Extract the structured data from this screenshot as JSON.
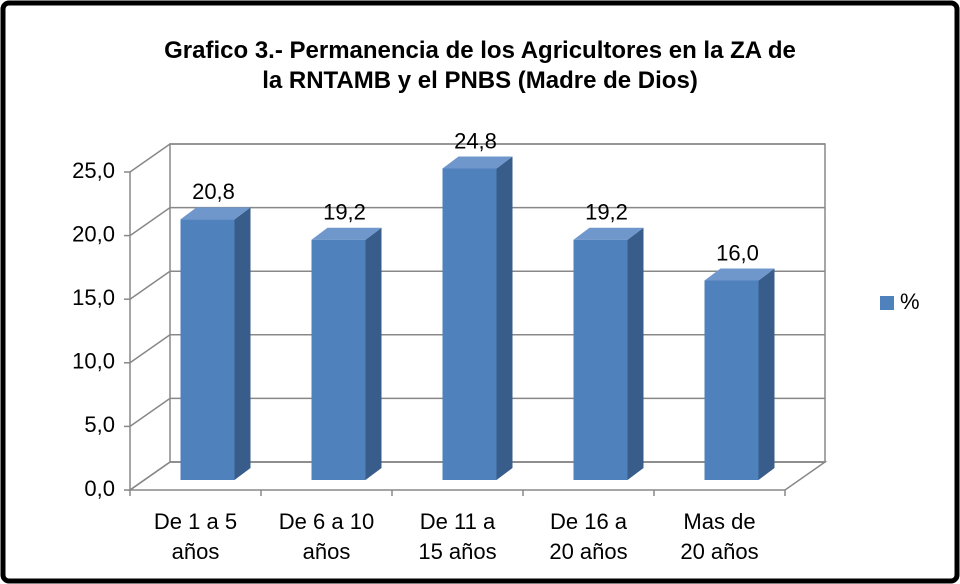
{
  "chart_data": {
    "type": "bar3d",
    "title": "Grafico 3.- Permanencia de los Agricultores en la ZA de\nla RNTAMB y el PNBS (Madre de Dios)",
    "categories": [
      "De 1 a 5\naños",
      "De 6 a 10\naños",
      "De 11 a\n15 años",
      "De 16 a\n20 años",
      "Mas de\n20 años"
    ],
    "series": [
      {
        "name": "%",
        "color": "#4f81bd",
        "values": [
          20.8,
          19.2,
          24.8,
          19.2,
          16.0
        ],
        "value_labels": [
          "20,8",
          "19,2",
          "24,8",
          "19,2",
          "16,0"
        ]
      }
    ],
    "ylim": [
      0,
      25
    ],
    "yticks": [
      {
        "value": 0,
        "label": "0,0"
      },
      {
        "value": 5,
        "label": "5,0"
      },
      {
        "value": 10,
        "label": "10,0"
      },
      {
        "value": 15,
        "label": "15,0"
      },
      {
        "value": 20,
        "label": "20,0"
      },
      {
        "value": 25,
        "label": "25,0"
      }
    ],
    "grid": true,
    "legend": "right"
  }
}
